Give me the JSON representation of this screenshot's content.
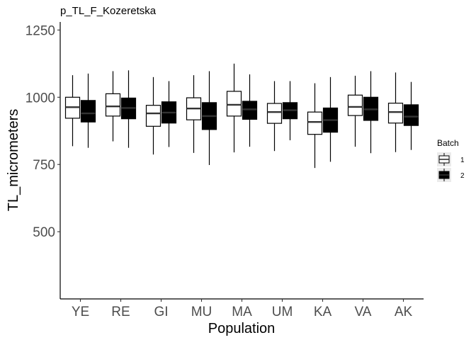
{
  "chart_data": {
    "type": "box",
    "title": "p_TL_F_Kozeretska",
    "xlabel": "Population",
    "ylabel": "TL_micrometers",
    "categories": [
      "YE",
      "RE",
      "GI",
      "MU",
      "MA",
      "UM",
      "KA",
      "VA",
      "AK"
    ],
    "ylim": [
      250,
      1280
    ],
    "yticks": [
      500,
      750,
      1000,
      1250
    ],
    "grid": false,
    "legend": {
      "title": "Batch",
      "placement": "right",
      "entries": [
        {
          "label": "1",
          "fill": "#ffffff"
        },
        {
          "label": "2",
          "fill": "#000000"
        }
      ]
    },
    "series": [
      {
        "name": "1",
        "fill": "#ffffff",
        "stroke": "#000000",
        "median_color": "#333333",
        "boxes": [
          {
            "min": 818,
            "q1": 922,
            "median": 963,
            "q3": 1000,
            "max": 1082
          },
          {
            "min": 836,
            "q1": 930,
            "median": 966,
            "q3": 1013,
            "max": 1097
          },
          {
            "min": 787,
            "q1": 892,
            "median": 940,
            "q3": 970,
            "max": 1075
          },
          {
            "min": 793,
            "q1": 916,
            "median": 958,
            "q3": 998,
            "max": 1082
          },
          {
            "min": 795,
            "q1": 930,
            "median": 972,
            "q3": 1022,
            "max": 1125
          },
          {
            "min": 800,
            "q1": 903,
            "median": 945,
            "q3": 977,
            "max": 1060
          },
          {
            "min": 737,
            "q1": 862,
            "median": 908,
            "q3": 945,
            "max": 1052
          },
          {
            "min": 816,
            "q1": 932,
            "median": 964,
            "q3": 1008,
            "max": 1080
          },
          {
            "min": 796,
            "q1": 904,
            "median": 945,
            "q3": 978,
            "max": 1092
          }
        ]
      },
      {
        "name": "2",
        "fill": "#000000",
        "stroke": "#000000",
        "median_color": "#333333",
        "boxes": [
          {
            "min": 812,
            "q1": 908,
            "median": 940,
            "q3": 988,
            "max": 1088
          },
          {
            "min": 812,
            "q1": 920,
            "median": 960,
            "q3": 997,
            "max": 1100
          },
          {
            "min": 815,
            "q1": 904,
            "median": 943,
            "q3": 983,
            "max": 1060
          },
          {
            "min": 748,
            "q1": 880,
            "median": 930,
            "q3": 980,
            "max": 1097
          },
          {
            "min": 816,
            "q1": 918,
            "median": 955,
            "q3": 985,
            "max": 1085
          },
          {
            "min": 840,
            "q1": 920,
            "median": 952,
            "q3": 980,
            "max": 1060
          },
          {
            "min": 760,
            "q1": 870,
            "median": 915,
            "q3": 960,
            "max": 1075
          },
          {
            "min": 792,
            "q1": 914,
            "median": 955,
            "q3": 1000,
            "max": 1097
          },
          {
            "min": 804,
            "q1": 895,
            "median": 928,
            "q3": 972,
            "max": 1057
          }
        ]
      }
    ]
  }
}
